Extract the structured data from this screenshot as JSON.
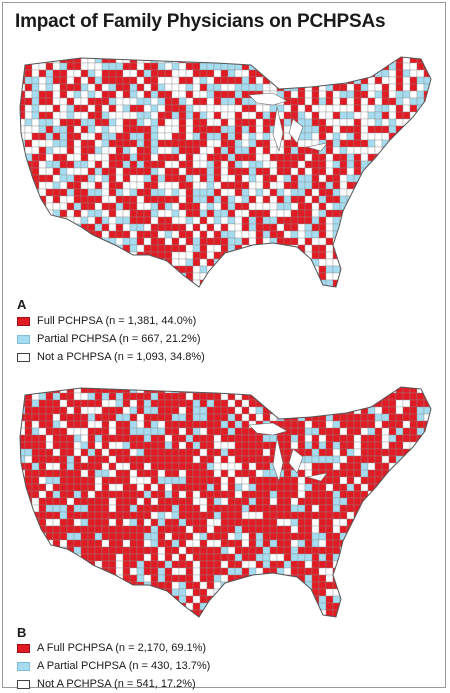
{
  "title": "Impact of Family Physicians on PCHPSAs",
  "colors": {
    "full": "#e01b24",
    "partial": "#a6dcef",
    "none": "#ffffff",
    "border": "#555555"
  },
  "panel_a": {
    "letter": "A",
    "legend": [
      {
        "key": "full",
        "label": "Full PCHPSA (n = 1,381, 44.0%)"
      },
      {
        "key": "partial",
        "label": "Partial PCHPSA (n = 667, 21.2%)"
      },
      {
        "key": "none",
        "label": "Not a PCHPSA (n = 1,093, 34.8%)"
      }
    ],
    "share": {
      "full": 0.44,
      "partial": 0.212,
      "none": 0.348
    }
  },
  "panel_b": {
    "letter": "B",
    "legend": [
      {
        "key": "full",
        "label": "A Full PCHPSA (n = 2,170, 69.1%)"
      },
      {
        "key": "partial",
        "label": "A Partial PCHPSA (n = 430, 13.7%)"
      },
      {
        "key": "none",
        "label": "Not A PCHPSA (n = 541, 17.2%)"
      }
    ],
    "share": {
      "full": 0.691,
      "partial": 0.137,
      "none": 0.172
    }
  }
}
